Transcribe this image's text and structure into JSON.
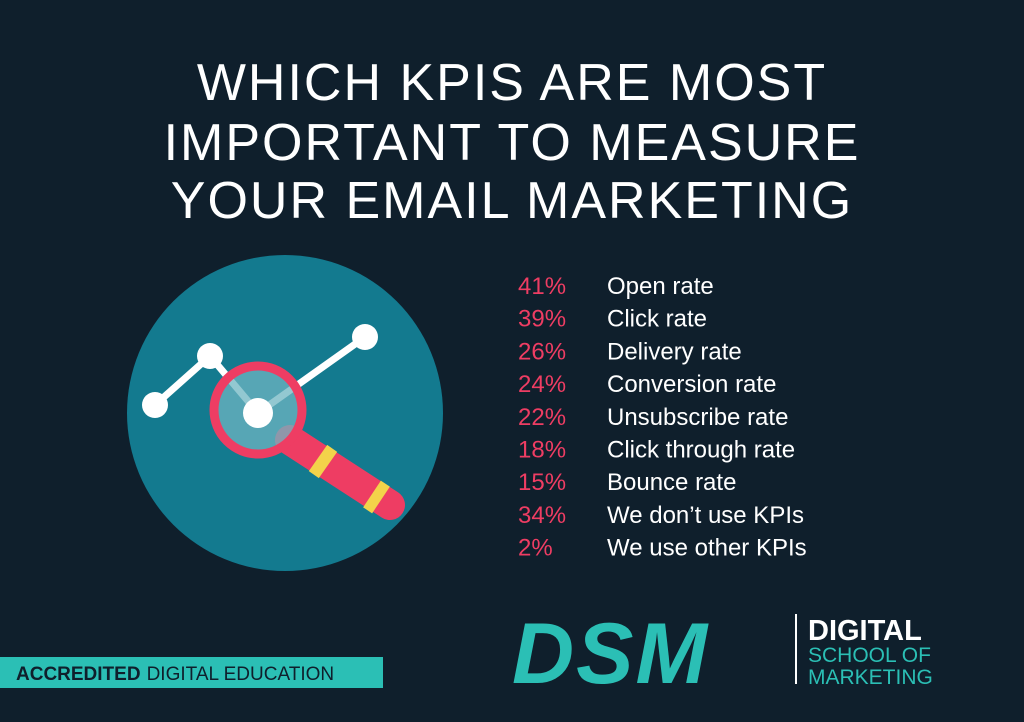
{
  "title": [
    "WHICH KPIS ARE MOST",
    "IMPORTANT TO MEASURE",
    "YOUR EMAIL MARKETING"
  ],
  "kpis": [
    {
      "percent": "41%",
      "label": "Open rate"
    },
    {
      "percent": "39%",
      "label": "Click rate"
    },
    {
      "percent": "26%",
      "label": "Delivery rate"
    },
    {
      "percent": "24%",
      "label": "Conversion rate"
    },
    {
      "percent": "22%",
      "label": "Unsubscribe rate"
    },
    {
      "percent": "18%",
      "label": "Click through rate"
    },
    {
      "percent": "15%",
      "label": "Bounce rate"
    },
    {
      "percent": "34%",
      "label": "We don’t use KPIs"
    },
    {
      "percent": "2%",
      "label": "We use other KPIs"
    }
  ],
  "logo": {
    "mark": "DSM",
    "name": [
      "DIGITAL",
      "SCHOOL OF",
      "MARKETING"
    ]
  },
  "badge": {
    "strong": "ACCREDITED",
    "rest": "DIGITAL EDUCATION"
  }
}
